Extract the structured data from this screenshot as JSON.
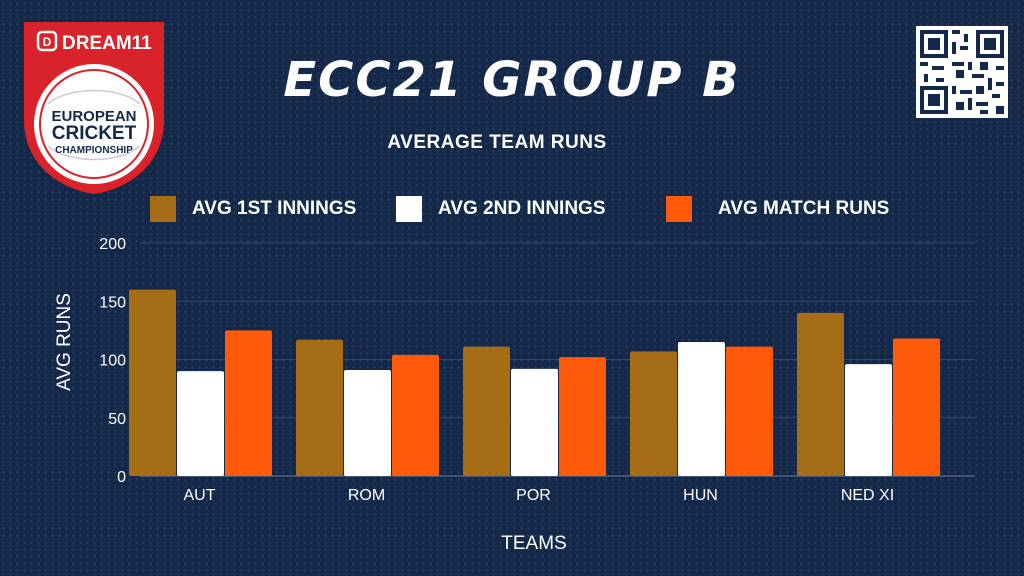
{
  "logo": {
    "brand": "DREAM11",
    "line1": "EUROPEAN",
    "line2": "CRICKET",
    "line3": "CHAMPIONSHIP"
  },
  "qr_code": "qr-code-icon",
  "chart_data": {
    "type": "bar",
    "title": "ECC21 GROUP B",
    "subtitle": "AVERAGE TEAM RUNS",
    "xlabel": "TEAMS",
    "ylabel": "AVG RUNS",
    "ylim": [
      0,
      200
    ],
    "yticks": [
      0,
      50,
      100,
      150,
      200
    ],
    "grid": true,
    "legend_position": "top",
    "categories": [
      "AUT",
      "ROM",
      "POR",
      "HUN",
      "NED XI"
    ],
    "series": [
      {
        "name": "AVG 1ST INNINGS",
        "color": "#A46D16",
        "values": [
          160,
          117,
          111,
          107,
          140
        ]
      },
      {
        "name": "AVG 2ND INNINGS",
        "color": "#FFFFFF",
        "values": [
          90,
          91,
          92,
          115,
          96
        ]
      },
      {
        "name": "AVG MATCH RUNS",
        "color": "#FF5A0A",
        "values": [
          125,
          104,
          102,
          111,
          118
        ]
      }
    ]
  }
}
